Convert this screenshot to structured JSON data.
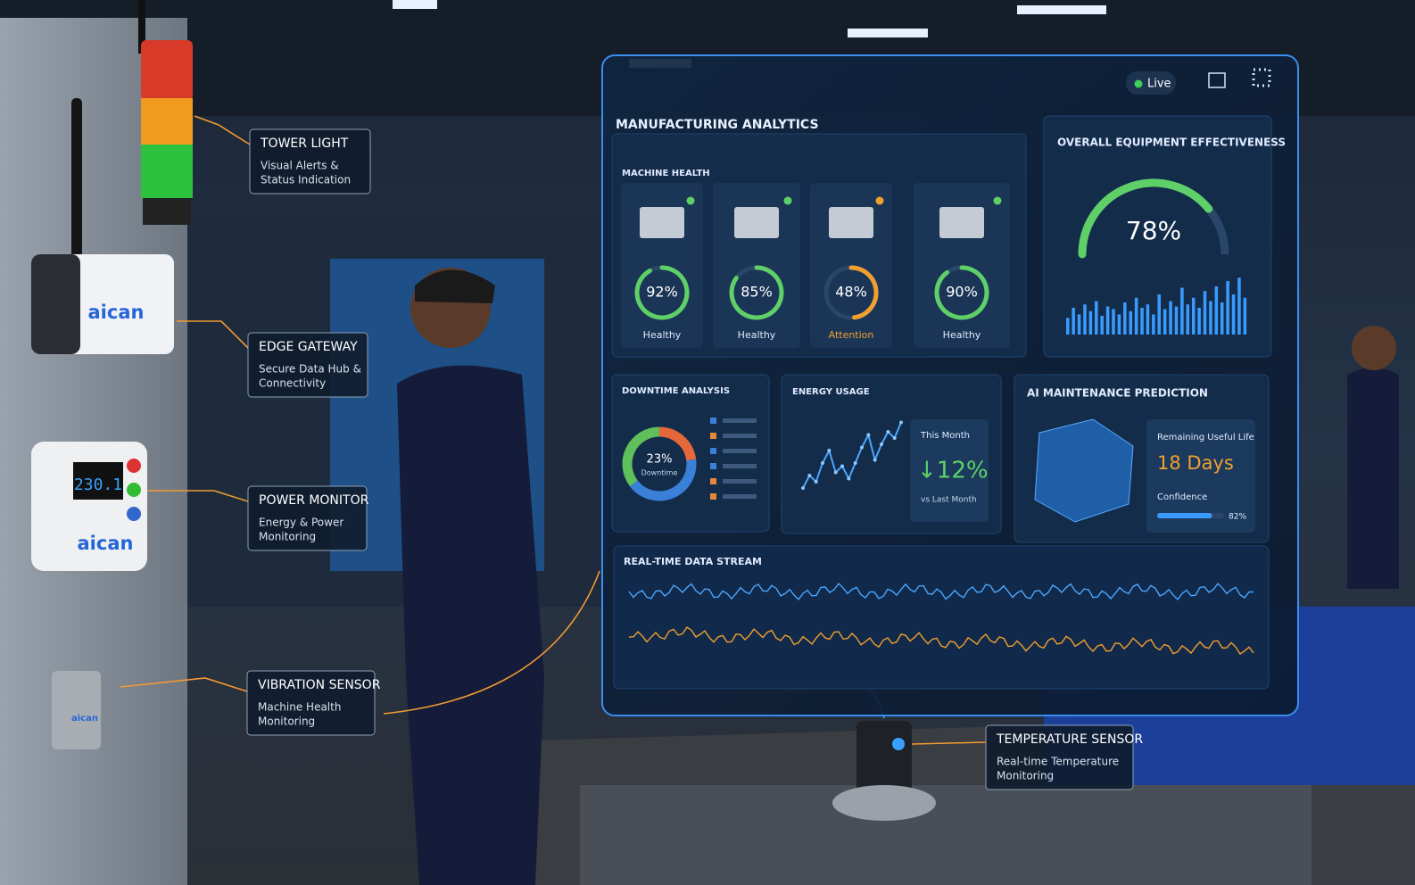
{
  "callouts": [
    {
      "title": "TOWER LIGHT",
      "text": [
        "Visual Alerts &",
        "Status Indication"
      ]
    },
    {
      "title": "EDGE GATEWAY",
      "text": [
        "Secure Data Hub &",
        "Connectivity"
      ]
    },
    {
      "title": "POWER MONITOR",
      "text": [
        "Energy & Power",
        "Monitoring"
      ]
    },
    {
      "title": "VIBRATION SENSOR",
      "text": [
        "Machine Health",
        "Monitoring"
      ]
    },
    {
      "title": "TEMPERATURE SENSOR",
      "text": [
        "Real-time Temperature",
        "Monitoring"
      ]
    }
  ],
  "devices": {
    "gateway_brand": "aican",
    "power_brand": "aican",
    "sensor_brand": "aican",
    "display": "230.1"
  },
  "dashboard": {
    "title": "MANUFACTURING ANALYTICS",
    "status": "Live",
    "machine_health": {
      "title": "MACHINE HEALTH",
      "machines": [
        {
          "value": 92,
          "label": "92%",
          "status": "Healthy",
          "color": "#5fd068"
        },
        {
          "value": 85,
          "label": "85%",
          "status": "Healthy",
          "color": "#5fd068"
        },
        {
          "value": 48,
          "label": "48%",
          "status": "Attention",
          "color": "#f0a030"
        },
        {
          "value": 90,
          "label": "90%",
          "status": "Healthy",
          "color": "#5fd068"
        }
      ]
    },
    "oee": {
      "title": "OVERALL EQUIPMENT EFFECTIVENESS",
      "value": 78,
      "label": "78%",
      "trend": [
        25,
        40,
        30,
        45,
        35,
        50,
        28,
        42,
        38,
        30,
        48,
        35,
        55,
        40,
        45,
        30,
        60,
        38,
        50,
        42,
        70,
        45,
        55,
        40,
        65,
        50,
        72,
        48,
        80,
        60,
        85,
        55
      ]
    },
    "downtime": {
      "title": "DOWNTIME ANALYSIS",
      "value": 23,
      "label": "23%",
      "caption": "Downtime"
    },
    "energy": {
      "title": "ENERGY USAGE",
      "period": "This Month",
      "change": "↓12%",
      "comparison": "vs Last Month",
      "values": [
        8,
        12,
        10,
        16,
        20,
        13,
        15,
        11,
        16,
        21,
        25,
        17,
        22,
        26,
        24,
        29
      ],
      "ylim": [
        0,
        30
      ]
    },
    "maintenance": {
      "title": "AI MAINTENANCE PREDICTION",
      "rul_label": "Remaining Useful Life",
      "rul": "18 Days",
      "confidence_label": "Confidence",
      "confidence": 82,
      "confidence_text": "82%"
    },
    "stream": {
      "title": "REAL-TIME DATA STREAM"
    }
  }
}
